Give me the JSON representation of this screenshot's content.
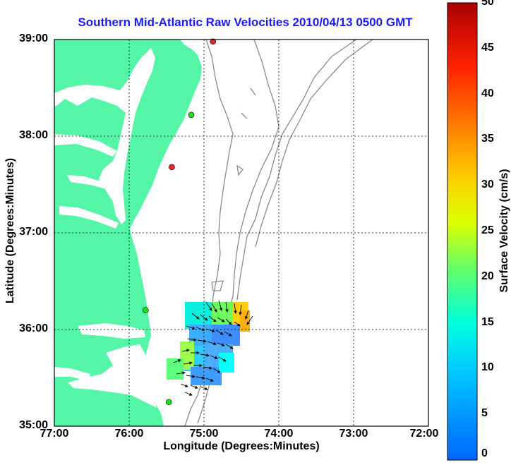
{
  "title": "Southern Mid-Atlantic Raw Velocities 2010/04/13 0500 GMT",
  "axes": {
    "xlabel": "Longitude (Degrees:Minutes)",
    "ylabel": "Latitude (Degrees:Minutes)",
    "x_ticks": [
      "77:00",
      "76:00",
      "75:00",
      "74:00",
      "73:00",
      "72:00"
    ],
    "y_ticks": [
      "39:00",
      "38:00",
      "37:00",
      "36:00",
      "35:00"
    ],
    "xlim": [
      -77,
      -72
    ],
    "ylim": [
      35,
      39
    ],
    "grid": "dotted"
  },
  "colorbar": {
    "label": "Surface Velocity (cm/s)",
    "ticks": [
      "50",
      "45",
      "40",
      "35",
      "30",
      "25",
      "20",
      "15",
      "10",
      "5",
      "0"
    ],
    "range": [
      0,
      50
    ]
  },
  "colors": {
    "land": "#55f5a8",
    "water": "#ffffff",
    "bathymetry": "#8a8a8a",
    "title": "#1a1aff",
    "station_active": "#22dd22",
    "station_inactive": "#ee2222"
  },
  "stations": [
    {
      "lon": -74.88,
      "lat": 38.98,
      "status": "inactive"
    },
    {
      "lon": -75.17,
      "lat": 38.22,
      "status": "active"
    },
    {
      "lon": -75.43,
      "lat": 37.68,
      "status": "inactive"
    },
    {
      "lon": -75.78,
      "lat": 36.2,
      "status": "active"
    },
    {
      "lon": -75.47,
      "lat": 35.25,
      "status": "active"
    }
  ]
}
